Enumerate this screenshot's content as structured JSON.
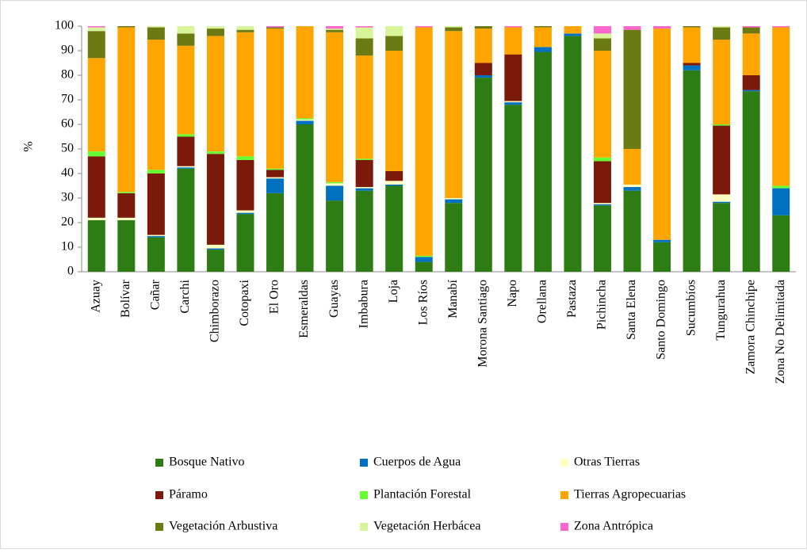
{
  "chart_data": {
    "type": "stacked_bar",
    "ylabel": "%",
    "categories": [
      "Azuay",
      "Bolívar",
      "Cañar",
      "Carchi",
      "Chimborazo",
      "Cotopaxi",
      "El Oro",
      "Esmeraldas",
      "Guayas",
      "Imbabura",
      "Loja",
      "Los Ríos",
      "Manabí",
      "Morona Santiago",
      "Napo",
      "Orellana",
      "Pastaza",
      "Pichincha",
      "Santa Elena",
      "Santo Domingo",
      "Sucumbíos",
      "Tungurahua",
      "Zamora Chinchipe",
      "Zona No Delimitada"
    ],
    "series": [
      {
        "name": "Bosque Nativo",
        "color": "#2e7d14",
        "values": [
          21,
          21,
          14,
          42,
          9,
          23.5,
          32,
          60,
          29,
          33,
          35,
          4,
          28,
          79,
          68,
          89.5,
          96,
          27,
          33,
          12,
          82,
          28,
          73.5,
          23
        ]
      },
      {
        "name": "Cuerpos de Agua",
        "color": "#0070c0",
        "values": [
          0,
          0,
          0.5,
          0.5,
          0.5,
          0.5,
          6,
          1.5,
          6,
          1,
          0.5,
          2,
          1.5,
          1,
          1,
          2,
          1,
          0.5,
          1.5,
          1,
          2,
          0.5,
          0.5,
          11
        ]
      },
      {
        "name": "Otras Tierras",
        "color": "#ffffc0",
        "values": [
          1,
          1,
          0.5,
          0.5,
          1.5,
          1,
          0.5,
          0.5,
          1,
          0.5,
          1.5,
          0,
          0.5,
          0,
          0.5,
          0,
          0,
          0.5,
          1,
          0,
          0,
          3,
          0,
          0
        ]
      },
      {
        "name": "Páramo",
        "color": "#7b1a0a",
        "values": [
          25,
          10,
          25,
          12,
          37,
          20.5,
          3,
          0,
          0,
          11,
          4,
          0,
          0,
          5,
          19,
          0,
          0,
          17,
          0,
          0,
          1,
          28,
          6,
          0
        ]
      },
      {
        "name": "Plantación Forestal",
        "color": "#66ff33",
        "values": [
          2,
          0.5,
          1.5,
          1,
          1,
          1.5,
          0.5,
          0.5,
          0.5,
          0.5,
          0,
          0.5,
          0,
          0,
          0,
          0,
          0,
          1.5,
          0,
          0,
          0,
          0.5,
          0,
          1
        ]
      },
      {
        "name": "Tierras Agropecuarias",
        "color": "#ffa500",
        "values": [
          38,
          67,
          53,
          36,
          47,
          50.5,
          57,
          37.5,
          61,
          42,
          49,
          93,
          68,
          14,
          11,
          8,
          3,
          43.5,
          14.5,
          86,
          14.5,
          34.5,
          17,
          64.5
        ]
      },
      {
        "name": "Vegetación Arbustiva",
        "color": "#6b7a12",
        "values": [
          11,
          0.5,
          5,
          5,
          3,
          1,
          0.5,
          0,
          1,
          7,
          6,
          0,
          1.5,
          1,
          0,
          0.5,
          0,
          5,
          48.5,
          0,
          0.5,
          5,
          2.5,
          0
        ]
      },
      {
        "name": "Vegetación Herbácea",
        "color": "#d9f59a",
        "values": [
          1.5,
          0,
          0.5,
          3,
          1,
          1.5,
          0,
          0,
          0.5,
          4.5,
          4,
          0,
          0.5,
          0,
          0,
          0,
          0,
          2,
          0,
          0,
          0,
          0.5,
          0,
          0
        ]
      },
      {
        "name": "Zona Antrópica",
        "color": "#ff66cc",
        "values": [
          0.5,
          0,
          0,
          0,
          0,
          0,
          0.5,
          0,
          1,
          0.5,
          0,
          0.5,
          0,
          0,
          0.5,
          0,
          0,
          3,
          1.5,
          1,
          0,
          0,
          0.5,
          0.5
        ]
      }
    ],
    "ylim": [
      0,
      100
    ],
    "yticks": [
      0,
      10,
      20,
      30,
      40,
      50,
      60,
      70,
      80,
      90,
      100
    ]
  }
}
